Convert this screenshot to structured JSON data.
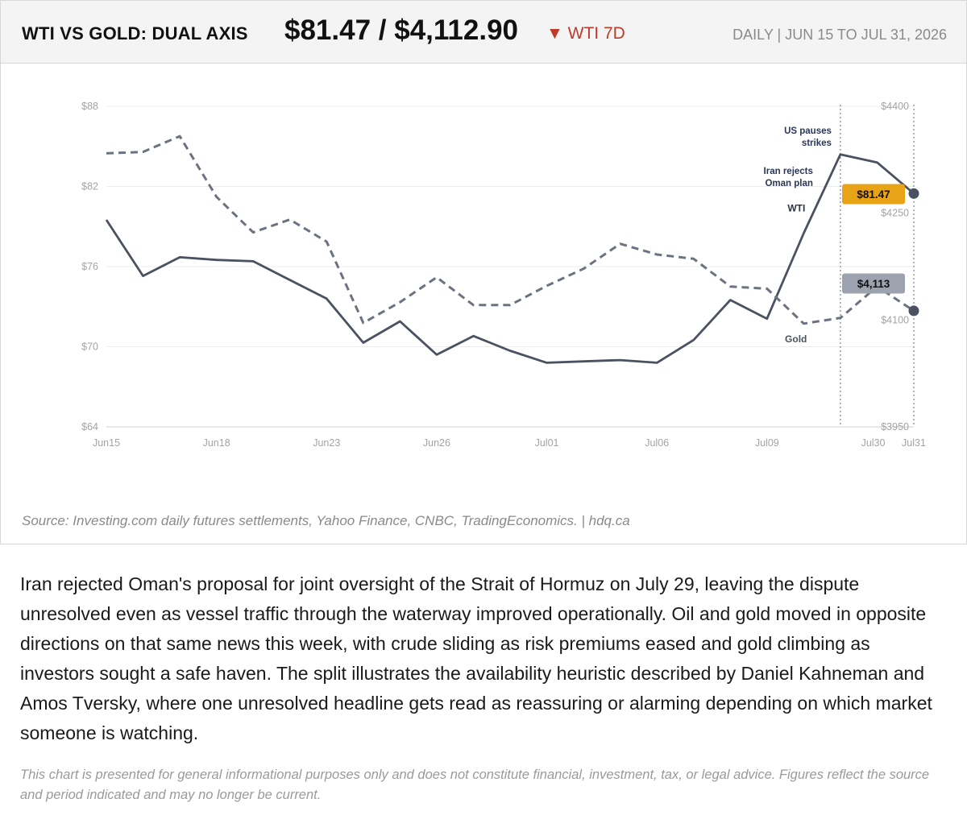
{
  "header": {
    "title": "WTI VS GOLD: DUAL AXIS",
    "price": "$81.47 / $4,112.90",
    "change_arrow": "▼",
    "change_label": "WTI 7D",
    "period": "DAILY  |  JUN 15 TO JUL 31, 2026"
  },
  "colors": {
    "wti": "#4a5160",
    "gold": "#6b7280",
    "wti_badge": "#e8a317",
    "gold_badge": "#9ca3af",
    "down": "#c0392b"
  },
  "chart_data": {
    "type": "line",
    "x": [
      "Jun15",
      "Jun16",
      "Jun17",
      "Jun18",
      "Jun19",
      "Jun22",
      "Jun23",
      "Jun24",
      "Jun25",
      "Jun26",
      "Jun29",
      "Jun30",
      "Jul01",
      "Jul02",
      "Jul03",
      "Jul06",
      "Jul07",
      "Jul08",
      "Jul09",
      "Jul10",
      "Jul29",
      "Jul30",
      "Jul31"
    ],
    "x_tick_labels": [
      "Jun15",
      "Jun18",
      "Jun23",
      "Jun26",
      "Jul01",
      "Jul06",
      "Jul09",
      "Jul30",
      "Jul31"
    ],
    "series": [
      {
        "name": "WTI",
        "axis": "left",
        "style": "solid",
        "values": [
          79.5,
          75.3,
          76.7,
          76.5,
          76.4,
          75.0,
          73.6,
          70.3,
          71.9,
          69.4,
          70.8,
          69.7,
          68.8,
          68.9,
          69.0,
          68.8,
          70.5,
          73.5,
          72.1,
          78.5,
          84.4,
          83.8,
          81.47
        ]
      },
      {
        "name": "Gold",
        "axis": "right",
        "style": "dashed",
        "values": [
          4334,
          4336,
          4358,
          4273,
          4223,
          4241,
          4210,
          4096,
          4125,
          4160,
          4121,
          4121,
          4148,
          4172,
          4207,
          4192,
          4186,
          4147,
          4144,
          4095,
          4103,
          4147,
          4112.9
        ]
      }
    ],
    "y_left": {
      "ticks": [
        "$88",
        "$82",
        "$76",
        "$70",
        "$64"
      ],
      "ylim": [
        64,
        88
      ]
    },
    "y_right": {
      "ticks": [
        "$4400",
        "$4250",
        "$4100",
        "$3950"
      ],
      "ylim": [
        3950,
        4400
      ]
    },
    "annotations": [
      {
        "line1": "US pauses",
        "line2": "strikes",
        "at": "Jul29"
      },
      {
        "line1": "Iran rejects",
        "line2": "Oman plan",
        "at": "Jul29"
      }
    ],
    "series_labels": {
      "wti": "WTI",
      "gold": "Gold"
    },
    "end_badges": {
      "wti": "$81.47",
      "gold": "$4,113"
    },
    "grid": true
  },
  "source": "Source: Investing.com daily futures settlements, Yahoo Finance, CNBC, TradingEconomics.  |  hdq.ca",
  "article": "Iran rejected Oman's proposal for joint oversight of the Strait of Hormuz on July 29, leaving the dispute unresolved even as vessel traffic through the waterway improved operationally. Oil and gold moved in opposite directions on that same news this week, with crude sliding as risk premiums eased and gold climbing as investors sought a safe haven. The split illustrates the availability heuristic described by Daniel Kahneman and Amos Tversky, where one unresolved headline gets read as reassuring or alarming depending on which market someone is watching.",
  "disclaimer": "This chart is presented for general informational purposes only and does not constitute financial, investment, tax, or legal advice. Figures reflect the source and period indicated and may no longer be current."
}
